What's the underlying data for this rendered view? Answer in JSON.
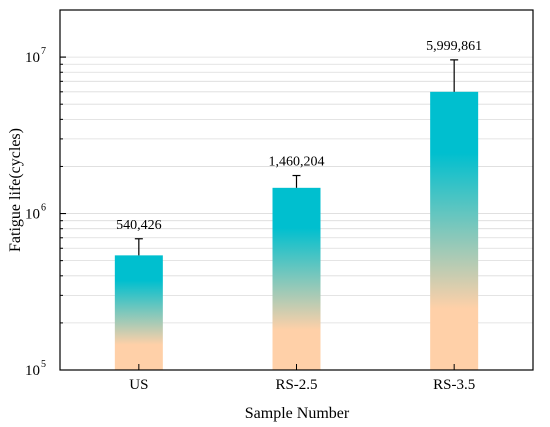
{
  "chart_data": {
    "type": "bar",
    "categories": [
      "US",
      "RS-2.5",
      "RS-3.5"
    ],
    "values": [
      540426,
      1460204,
      5999861
    ],
    "value_labels": [
      "540,426",
      "1,460,204",
      "5,999,861"
    ],
    "error_upper": [
      690000,
      1750000,
      9600000
    ],
    "xlabel": "Sample Number",
    "ylabel": "Fatigue life(cycles)",
    "yscale": "log",
    "ylim": [
      100000,
      20000000
    ],
    "yticks": [
      {
        "value": 100000,
        "base": "10",
        "exp": "5"
      },
      {
        "value": 1000000,
        "base": "10",
        "exp": "6"
      },
      {
        "value": 10000000,
        "base": "10",
        "exp": "7"
      }
    ],
    "grid": true,
    "colors": {
      "bar_top": "#00bfcf",
      "bar_bottom": "#ffd0a8",
      "grid": "#dcdcdc",
      "axis": "#000000"
    }
  }
}
